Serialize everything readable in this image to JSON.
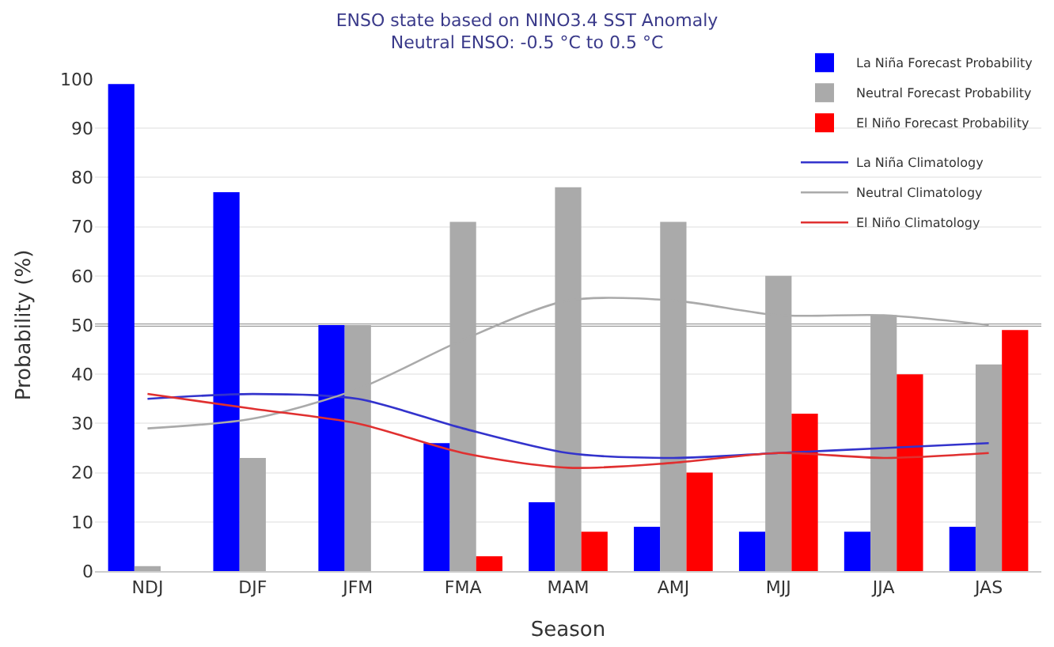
{
  "chart_data": {
    "type": "bar",
    "title": "ENSO state based on NINO3.4 SST Anomaly",
    "subtitle": "Neutral ENSO: -0.5 °C to 0.5 °C",
    "xlabel": "Season",
    "ylabel": "Probability (%)",
    "categories": [
      "NDJ",
      "DJF",
      "JFM",
      "FMA",
      "MAM",
      "AMJ",
      "MJJ",
      "JJA",
      "JAS"
    ],
    "series": [
      {
        "name": "La Niña Forecast Probability",
        "color": "#0000ff",
        "values": [
          99,
          77,
          50,
          26,
          14,
          9,
          8,
          8,
          9
        ]
      },
      {
        "name": "Neutral Forecast Probability",
        "color": "#aaaaaa",
        "values": [
          1,
          23,
          50,
          71,
          78,
          71,
          60,
          52,
          42
        ]
      },
      {
        "name": "El Niño Forecast Probability",
        "color": "#ff0000",
        "values": [
          0,
          0,
          0,
          3,
          8,
          20,
          32,
          40,
          49
        ]
      },
      {
        "name": "La Niña Climatology",
        "type": "line",
        "color": "#3333cc",
        "values": [
          35,
          36,
          35,
          29,
          24,
          23,
          24,
          25,
          26
        ]
      },
      {
        "name": "Neutral Climatology",
        "type": "line",
        "color": "#aaaaaa",
        "values": [
          29,
          31,
          37,
          47,
          55,
          55,
          52,
          52,
          50
        ]
      },
      {
        "name": "El Niño Climatology",
        "type": "line",
        "color": "#e03030",
        "values": [
          36,
          33,
          30,
          24,
          21,
          22,
          24,
          23,
          24
        ]
      }
    ],
    "ylim": [
      0,
      100
    ],
    "yticks": [
      0,
      10,
      20,
      30,
      40,
      50,
      60,
      70,
      80,
      90,
      100
    ],
    "ref_lines": [
      {
        "axis": "y",
        "value": 50,
        "color": "#333333"
      }
    ],
    "grid": "y",
    "legend": "top right",
    "marker": "none",
    "line_style": "solid"
  }
}
